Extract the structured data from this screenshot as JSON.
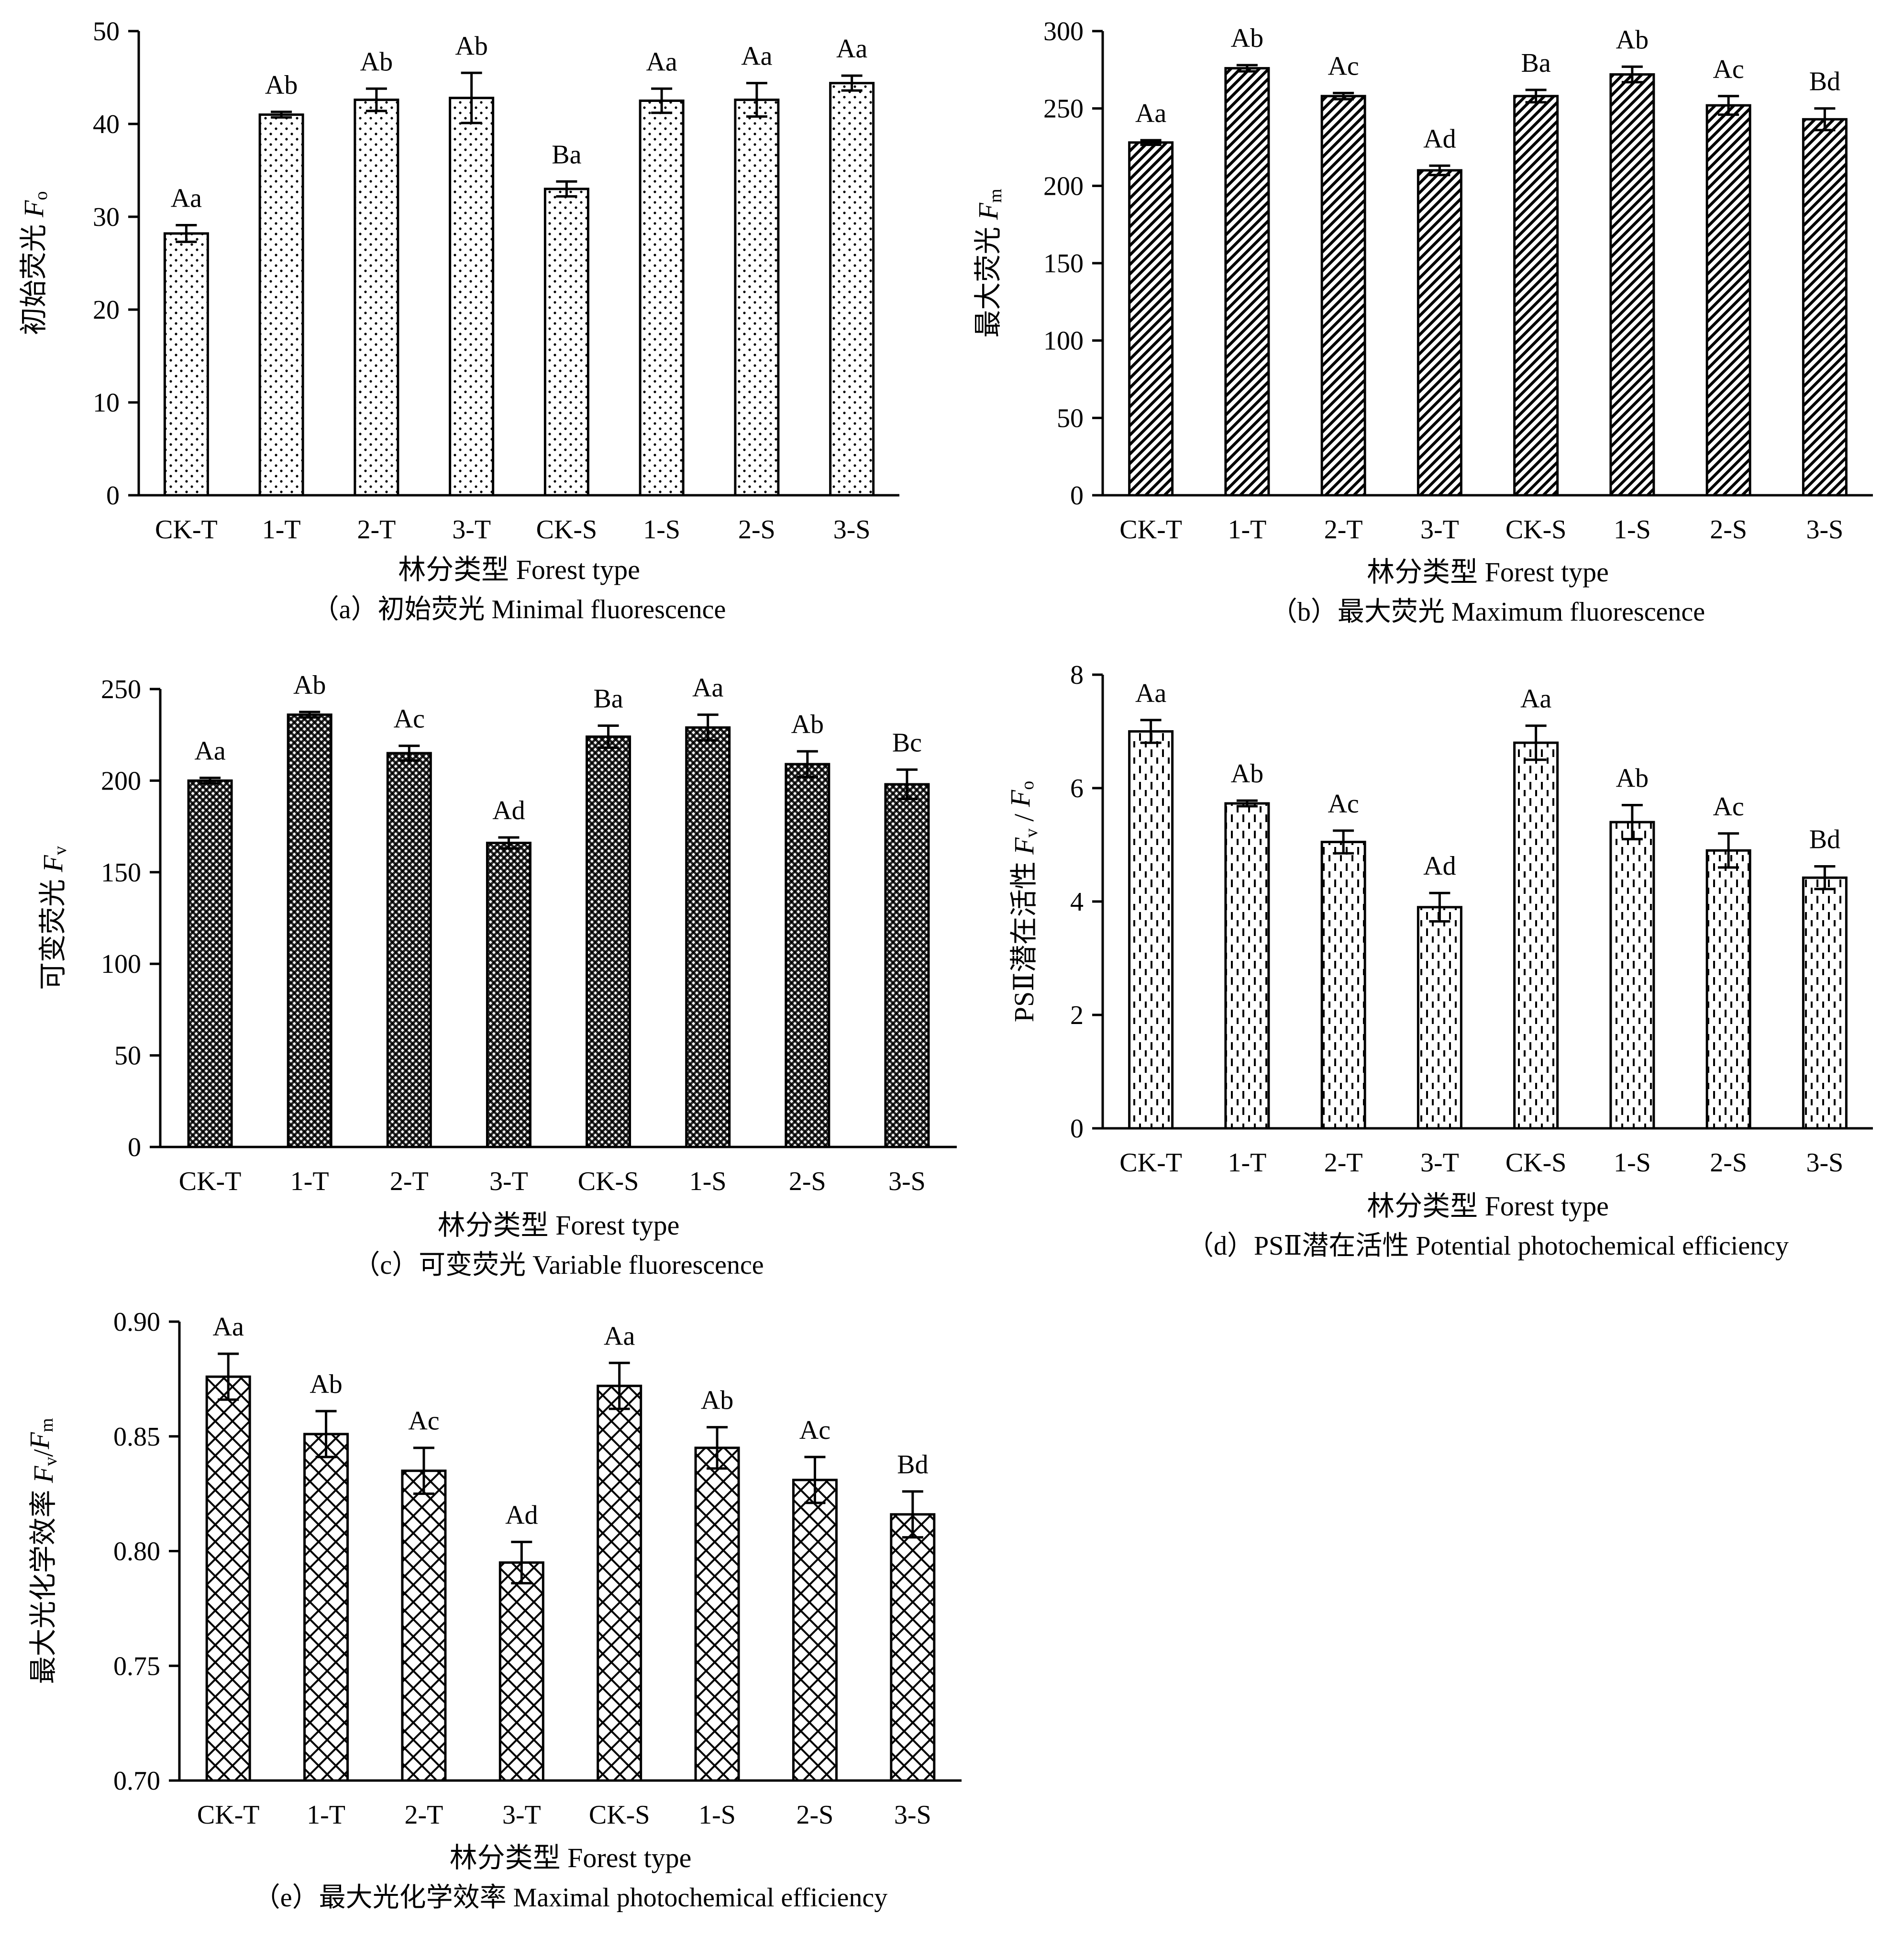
{
  "chart_data": [
    {
      "id": "a",
      "type": "bar",
      "categories": [
        "CK-T",
        "1-T",
        "2-T",
        "3-T",
        "CK-S",
        "1-S",
        "2-S",
        "3-S"
      ],
      "values": [
        28.2,
        41.0,
        42.6,
        42.8,
        33.0,
        42.5,
        42.6,
        44.4
      ],
      "errors": [
        0.9,
        0.3,
        1.2,
        2.7,
        0.8,
        1.3,
        1.8,
        0.8
      ],
      "significance": [
        "Aa",
        "Ab",
        "Ab",
        "Ab",
        "Ba",
        "Aa",
        "Aa",
        "Aa"
      ],
      "ylim": [
        0,
        50
      ],
      "yticks": [
        "0",
        "10",
        "20",
        "30",
        "40",
        "50"
      ],
      "ylabel_text": "初始荧光 ",
      "ylabel_symbol": "F",
      "ylabel_sub": "o",
      "xlabel": "林分类型 Forest type",
      "caption": "（a）初始荧光 Minimal fluorescence",
      "pattern": "dots"
    },
    {
      "id": "b",
      "type": "bar",
      "categories": [
        "CK-T",
        "1-T",
        "2-T",
        "3-T",
        "CK-S",
        "1-S",
        "2-S",
        "3-S"
      ],
      "values": [
        228,
        276,
        258,
        210,
        258,
        272,
        252,
        243
      ],
      "errors": [
        1.5,
        2.0,
        2.0,
        3.0,
        4.0,
        5.0,
        6.0,
        7.0
      ],
      "significance": [
        "Aa",
        "Ab",
        "Ac",
        "Ad",
        "Ba",
        "Ab",
        "Ac",
        "Bd"
      ],
      "ylim": [
        0,
        300
      ],
      "yticks": [
        "0",
        "50",
        "100",
        "150",
        "200",
        "250",
        "300"
      ],
      "ylabel_text": "最大荧光 ",
      "ylabel_symbol": "F",
      "ylabel_sub": "m",
      "xlabel": "林分类型 Forest type",
      "caption": "（b）最大荧光 Maximum fluorescence",
      "pattern": "diagonal"
    },
    {
      "id": "c",
      "type": "bar",
      "categories": [
        "CK-T",
        "1-T",
        "2-T",
        "3-T",
        "CK-S",
        "1-S",
        "2-S",
        "3-S"
      ],
      "values": [
        200,
        236,
        215,
        166,
        224,
        229,
        209,
        198
      ],
      "errors": [
        1.5,
        1.5,
        4.0,
        3.0,
        6.0,
        7.0,
        7.0,
        8.0
      ],
      "significance": [
        "Aa",
        "Ab",
        "Ac",
        "Ad",
        "Ba",
        "Aa",
        "Ab",
        "Bc"
      ],
      "ylim": [
        0,
        250
      ],
      "yticks": [
        "0",
        "50",
        "100",
        "150",
        "200",
        "250"
      ],
      "ylabel_text": "可变荧光 ",
      "ylabel_symbol": "F",
      "ylabel_sub": "v",
      "xlabel": "林分类型 Forest type",
      "caption": "（c）可变荧光 Variable fluorescence",
      "pattern": "crosshatch"
    },
    {
      "id": "d",
      "type": "bar",
      "categories": [
        "CK-T",
        "1-T",
        "2-T",
        "3-T",
        "CK-S",
        "1-S",
        "2-S",
        "3-S"
      ],
      "values": [
        7.0,
        5.73,
        5.05,
        3.9,
        6.8,
        5.4,
        4.9,
        4.42
      ],
      "errors": [
        0.2,
        0.05,
        0.2,
        0.25,
        0.3,
        0.3,
        0.3,
        0.2
      ],
      "significance": [
        "Aa",
        "Ab",
        "Ac",
        "Ad",
        "Aa",
        "Ab",
        "Ac",
        "Bd"
      ],
      "ylim": [
        0,
        8
      ],
      "yticks": [
        "0",
        "2",
        "4",
        "6",
        "8"
      ],
      "ylabel_text": "PSⅡ潜在活性 ",
      "ylabel_symbol": "F",
      "ylabel_sub": "v",
      "ylabel_rest": " / ",
      "ylabel_symbol2": "F",
      "ylabel_sub2": "o",
      "xlabel": "林分类型 Forest type",
      "caption": "（d）PSⅡ潜在活性 Potential photochemical efficiency",
      "pattern": "dashed"
    },
    {
      "id": "e",
      "type": "bar",
      "categories": [
        "CK-T",
        "1-T",
        "2-T",
        "3-T",
        "CK-S",
        "1-S",
        "2-S",
        "3-S"
      ],
      "values": [
        0.876,
        0.851,
        0.835,
        0.795,
        0.872,
        0.845,
        0.831,
        0.816
      ],
      "errors": [
        0.01,
        0.01,
        0.01,
        0.009,
        0.01,
        0.009,
        0.01,
        0.01
      ],
      "significance": [
        "Aa",
        "Ab",
        "Ac",
        "Ad",
        "Aa",
        "Ab",
        "Ac",
        "Bd"
      ],
      "ylim": [
        0.7,
        0.9
      ],
      "yticks": [
        "0.70",
        "0.75",
        "0.80",
        "0.85",
        "0.90"
      ],
      "ylabel_text": "最大光化学效率 ",
      "ylabel_symbol": "F",
      "ylabel_sub": "v",
      "ylabel_rest": "/",
      "ylabel_symbol2": "F",
      "ylabel_sub2": "m",
      "xlabel": "林分类型 Forest type",
      "caption": "（e）最大光化学效率 Maximal photochemical efficiency",
      "pattern": "lattice"
    }
  ]
}
